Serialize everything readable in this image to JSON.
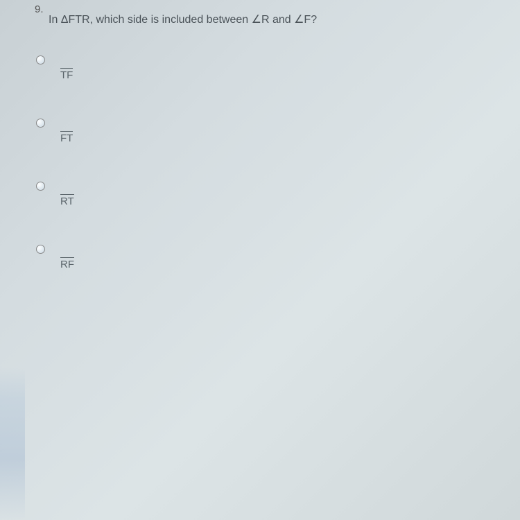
{
  "question_number": "9.",
  "question_text": "In ΔFTR, which side is included between ∠R and ∠F?",
  "options": [
    {
      "label": "TF"
    },
    {
      "label": "FT"
    },
    {
      "label": "RT"
    },
    {
      "label": "RF"
    }
  ],
  "colors": {
    "text": "#4a5258",
    "option_text": "#5a646a",
    "radio_border": "#888",
    "background_gradient": [
      "#c8d0d4",
      "#d4dce0",
      "#dce4e6",
      "#d0d8da"
    ]
  },
  "typography": {
    "font_family": "Verdana, Geneva, sans-serif",
    "question_fontsize": 16,
    "option_fontsize": 15
  }
}
